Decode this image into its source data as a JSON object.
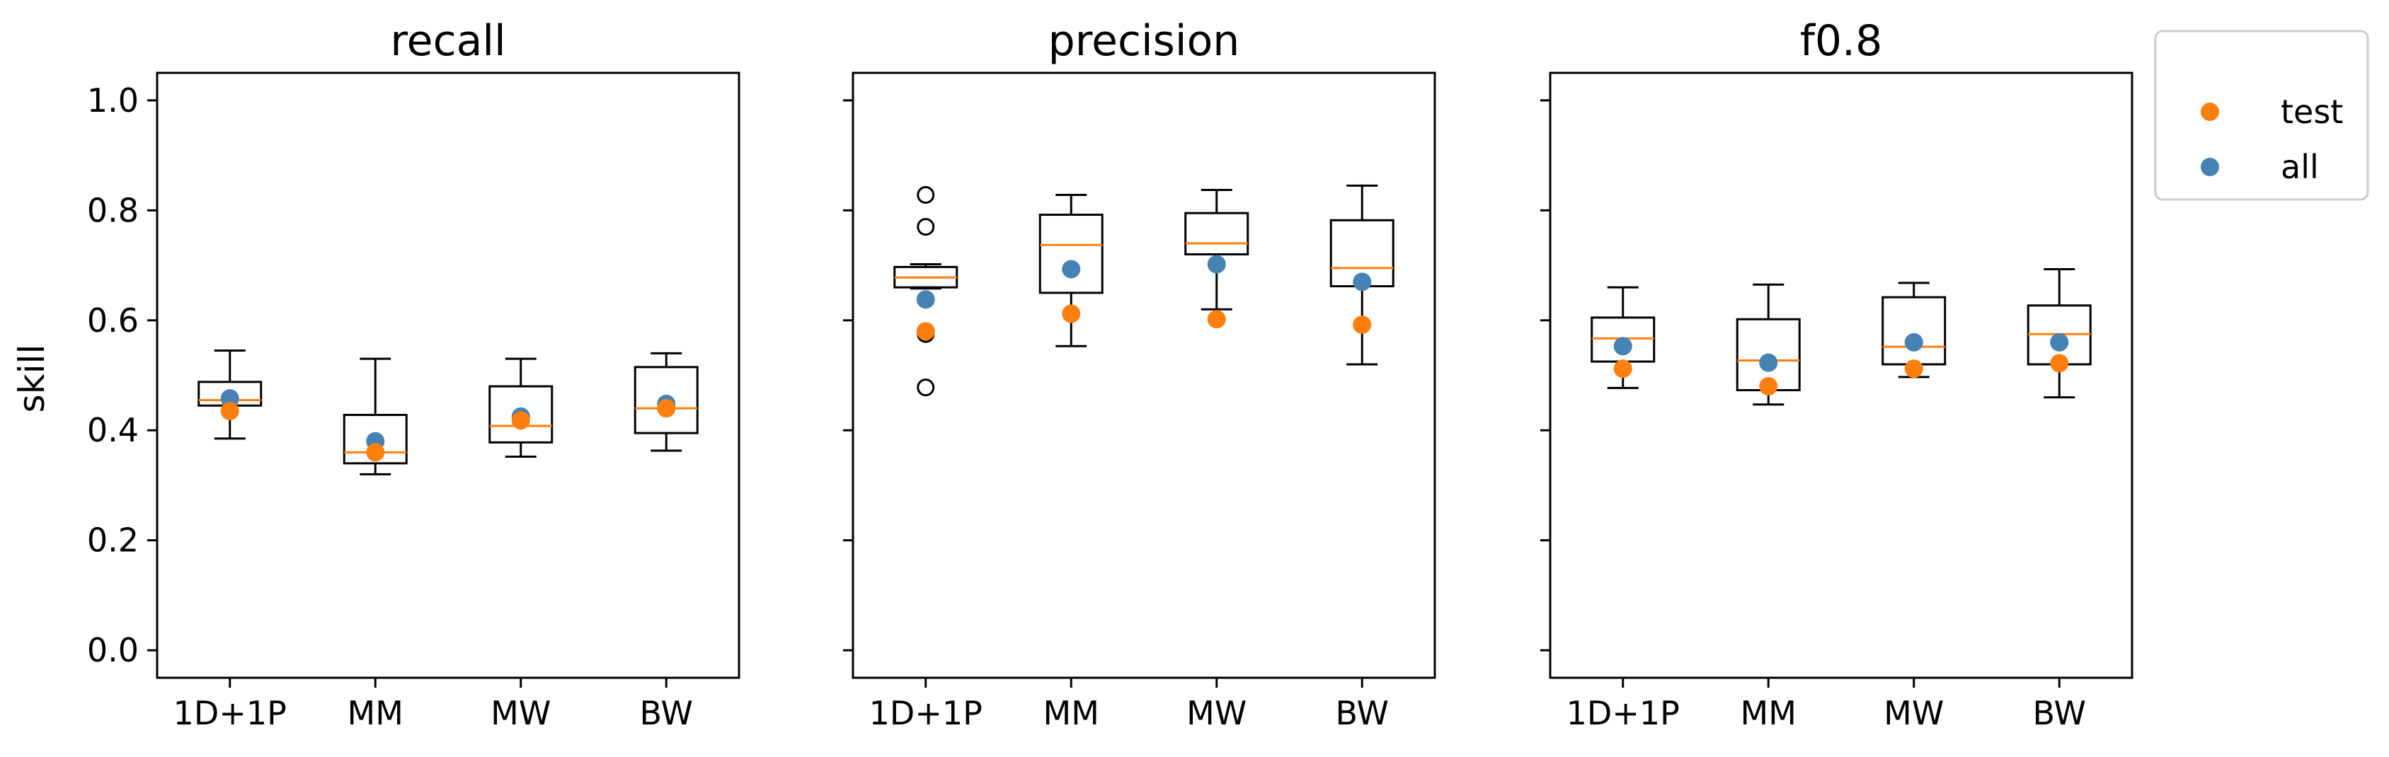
{
  "chart_data": {
    "type": "box",
    "ylabel": "skill",
    "ylim": [
      -0.05,
      1.05
    ],
    "yticks": [
      "0.0",
      "0.2",
      "0.4",
      "0.6",
      "0.8",
      "1.0"
    ],
    "categories": [
      "1D+1P",
      "MM",
      "MW",
      "BW"
    ],
    "legend": {
      "placement": "outside-top-right",
      "entries": [
        {
          "name": "test",
          "color": "#ff7f0e"
        },
        {
          "name": "all",
          "color": "#4682b4"
        }
      ]
    },
    "colors": {
      "median": "#ff7f0e",
      "test": "#ff7f0e",
      "all": "#4682b4",
      "box": "#000000"
    },
    "panels": [
      {
        "title": "recall",
        "boxes": [
          {
            "category": "1D+1P",
            "wlo": 0.385,
            "q1": 0.445,
            "med": 0.455,
            "q3": 0.488,
            "whi": 0.545,
            "fliers": []
          },
          {
            "category": "MM",
            "wlo": 0.32,
            "q1": 0.34,
            "med": 0.36,
            "q3": 0.428,
            "whi": 0.53,
            "fliers": []
          },
          {
            "category": "MW",
            "wlo": 0.352,
            "q1": 0.378,
            "med": 0.408,
            "q3": 0.48,
            "whi": 0.53,
            "fliers": []
          },
          {
            "category": "BW",
            "wlo": 0.363,
            "q1": 0.395,
            "med": 0.44,
            "q3": 0.515,
            "whi": 0.54,
            "fliers": []
          }
        ],
        "test": [
          0.435,
          0.36,
          0.418,
          0.44
        ],
        "all": [
          0.458,
          0.38,
          0.425,
          0.448
        ]
      },
      {
        "title": "precision",
        "boxes": [
          {
            "category": "1D+1P",
            "wlo": 0.658,
            "q1": 0.66,
            "med": 0.678,
            "q3": 0.697,
            "whi": 0.702,
            "fliers": [
              0.828,
              0.77,
              0.575,
              0.478
            ]
          },
          {
            "category": "MM",
            "wlo": 0.553,
            "q1": 0.65,
            "med": 0.737,
            "q3": 0.792,
            "whi": 0.828,
            "fliers": []
          },
          {
            "category": "MW",
            "wlo": 0.62,
            "q1": 0.72,
            "med": 0.74,
            "q3": 0.795,
            "whi": 0.837,
            "fliers": []
          },
          {
            "category": "BW",
            "wlo": 0.52,
            "q1": 0.662,
            "med": 0.695,
            "q3": 0.782,
            "whi": 0.845,
            "fliers": []
          }
        ],
        "test": [
          0.58,
          0.612,
          0.602,
          0.592
        ],
        "all": [
          0.638,
          0.693,
          0.702,
          0.67
        ]
      },
      {
        "title": "f0.8",
        "boxes": [
          {
            "category": "1D+1P",
            "wlo": 0.477,
            "q1": 0.525,
            "med": 0.567,
            "q3": 0.605,
            "whi": 0.66,
            "fliers": []
          },
          {
            "category": "MM",
            "wlo": 0.447,
            "q1": 0.473,
            "med": 0.527,
            "q3": 0.602,
            "whi": 0.665,
            "fliers": []
          },
          {
            "category": "MW",
            "wlo": 0.497,
            "q1": 0.52,
            "med": 0.552,
            "q3": 0.642,
            "whi": 0.668,
            "fliers": []
          },
          {
            "category": "BW",
            "wlo": 0.46,
            "q1": 0.52,
            "med": 0.575,
            "q3": 0.627,
            "whi": 0.693,
            "fliers": []
          }
        ],
        "test": [
          0.512,
          0.48,
          0.512,
          0.522
        ],
        "all": [
          0.553,
          0.523,
          0.56,
          0.56
        ]
      }
    ]
  }
}
